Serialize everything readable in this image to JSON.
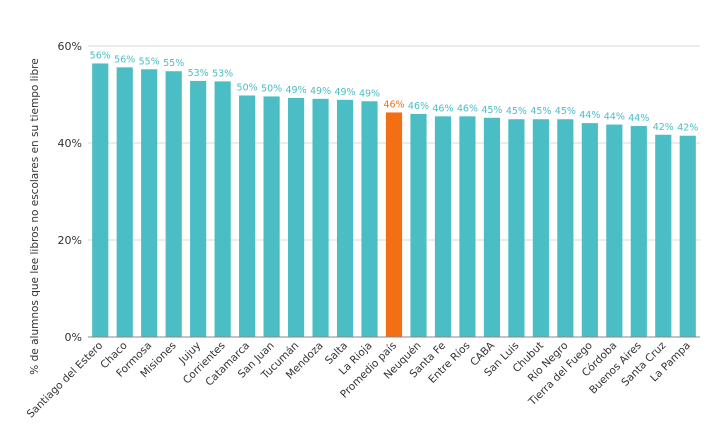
{
  "chart_data": {
    "type": "bar",
    "title": "",
    "xlabel": "",
    "ylabel": "% de alumnos que lee libros no escolares en su tiempo libre",
    "ylim": [
      0,
      60
    ],
    "yticks": [
      0,
      20,
      40,
      60
    ],
    "ytick_labels": [
      "0%",
      "20%",
      "40%",
      "60%"
    ],
    "grid": true,
    "categories": [
      "Santiago del Estero",
      "Chaco",
      "Formosa",
      "Misiones",
      "Jujuy",
      "Corrientes",
      "Catamarca",
      "San Juan",
      "Tucumán",
      "Mendoza",
      "Salta",
      "La Rioja",
      "Promedio país",
      "Neuquén",
      "Santa Fe",
      "Entre Ríos",
      "CABA",
      "San Luis",
      "Chubut",
      "Río Negro",
      "Tierra del Fuego",
      "Córdoba",
      "Buenos Aires",
      "Santa Cruz",
      "La Pampa"
    ],
    "values": [
      56.4,
      55.6,
      55.2,
      54.8,
      52.8,
      52.7,
      49.8,
      49.6,
      49.3,
      49.1,
      48.9,
      48.6,
      46.3,
      46.0,
      45.5,
      45.5,
      45.2,
      44.9,
      44.9,
      44.9,
      44.1,
      43.8,
      43.5,
      41.7,
      41.5
    ],
    "value_labels": [
      "56%",
      "56%",
      "55%",
      "55%",
      "53%",
      "53%",
      "50%",
      "50%",
      "49%",
      "49%",
      "49%",
      "49%",
      "46%",
      "46%",
      "46%",
      "46%",
      "45%",
      "45%",
      "45%",
      "45%",
      "44%",
      "44%",
      "44%",
      "42%",
      "42%"
    ],
    "highlight_category": "Promedio país",
    "colors": {
      "bar": "#4bbdc5",
      "highlight": "#f26f14",
      "label": "#4bbdc5",
      "highlight_label": "#f26f14"
    }
  }
}
